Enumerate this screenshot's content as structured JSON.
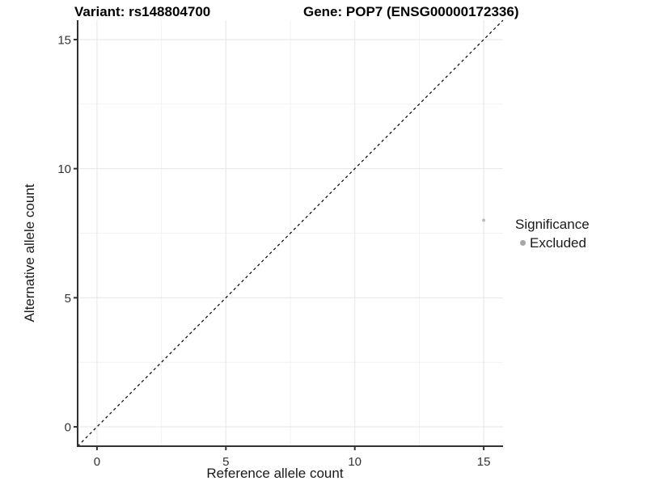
{
  "header": {
    "variant_title": "Variant: rs148804700",
    "gene_title": "Gene: POP7 (ENSG00000172336)"
  },
  "chart_data": {
    "type": "scatter",
    "xlabel": "Reference allele count",
    "ylabel": "Alternative allele count",
    "xlim": [
      -0.75,
      15.75
    ],
    "ylim": [
      -0.75,
      15.75
    ],
    "x_ticks": [
      0,
      5,
      10,
      15
    ],
    "y_ticks": [
      0,
      5,
      10,
      15
    ],
    "x_minor_ticks": [
      2.5,
      7.5,
      12.5
    ],
    "y_minor_ticks": [
      2.5,
      7.5,
      12.5
    ],
    "grid": true,
    "series": [
      {
        "name": "Excluded",
        "points": [
          {
            "x": 15,
            "y": 8
          }
        ],
        "color": "#bcbcbc",
        "marker": "circle",
        "marker_radius": 2
      }
    ],
    "reference_line": {
      "kind": "identity",
      "equation": "y = x",
      "style": "dashed",
      "color": "#000000",
      "x_start": -0.75,
      "x_end": 15.75
    },
    "legend": {
      "title": "Significance",
      "position": "right",
      "items": [
        {
          "label": "Excluded",
          "color": "#a6a6a6",
          "marker": "circle"
        }
      ]
    }
  },
  "style_colors": {
    "background": "#ffffff",
    "grid_major": "#e6e6e6",
    "grid_minor": "#f2f2f2",
    "axis_line": "#333333",
    "tick_label": "#333333",
    "point": "#bcbcbc"
  }
}
